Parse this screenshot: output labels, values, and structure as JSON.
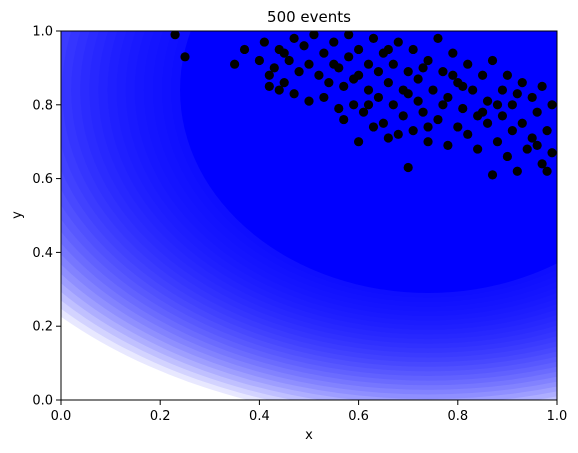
{
  "chart_data": {
    "type": "scatter",
    "title": "500 events",
    "xlabel": "x",
    "ylabel": "y",
    "xlim": [
      0,
      1
    ],
    "ylim": [
      0,
      1
    ],
    "grid": false,
    "x_ticks": [
      "0.0",
      "0.2",
      "0.4",
      "0.6",
      "0.8",
      "1.0"
    ],
    "y_ticks": [
      "0.0",
      "0.2",
      "0.4",
      "0.6",
      "0.8",
      "1.0"
    ],
    "background": {
      "type": "density",
      "color": "#0000ff",
      "peak_center": [
        0.74,
        0.84
      ],
      "saturated_radius": 0.5,
      "fade_radius": 0.75
    },
    "series": [
      {
        "marker_color": "#000000",
        "points": [
          [
            0.23,
            0.99
          ],
          [
            0.25,
            0.93
          ],
          [
            0.35,
            0.91
          ],
          [
            0.37,
            0.95
          ],
          [
            0.4,
            0.92
          ],
          [
            0.41,
            0.97
          ],
          [
            0.42,
            0.85
          ],
          [
            0.42,
            0.88
          ],
          [
            0.43,
            0.9
          ],
          [
            0.44,
            0.95
          ],
          [
            0.45,
            0.86
          ],
          [
            0.46,
            0.92
          ],
          [
            0.47,
            0.98
          ],
          [
            0.47,
            0.83
          ],
          [
            0.48,
            0.89
          ],
          [
            0.49,
            0.96
          ],
          [
            0.5,
            0.81
          ],
          [
            0.5,
            0.91
          ],
          [
            0.51,
            0.99
          ],
          [
            0.52,
            0.88
          ],
          [
            0.53,
            0.94
          ],
          [
            0.54,
            0.86
          ],
          [
            0.55,
            0.97
          ],
          [
            0.56,
            0.79
          ],
          [
            0.56,
            0.9
          ],
          [
            0.57,
            0.85
          ],
          [
            0.58,
            0.93
          ],
          [
            0.58,
            0.99
          ],
          [
            0.59,
            0.8
          ],
          [
            0.6,
            0.88
          ],
          [
            0.6,
            0.95
          ],
          [
            0.61,
            0.78
          ],
          [
            0.62,
            0.84
          ],
          [
            0.62,
            0.91
          ],
          [
            0.63,
            0.98
          ],
          [
            0.64,
            0.82
          ],
          [
            0.64,
            0.89
          ],
          [
            0.65,
            0.75
          ],
          [
            0.65,
            0.94
          ],
          [
            0.66,
            0.86
          ],
          [
            0.67,
            0.8
          ],
          [
            0.67,
            0.91
          ],
          [
            0.68,
            0.97
          ],
          [
            0.69,
            0.77
          ],
          [
            0.69,
            0.84
          ],
          [
            0.7,
            0.63
          ],
          [
            0.7,
            0.89
          ],
          [
            0.71,
            0.73
          ],
          [
            0.71,
            0.95
          ],
          [
            0.72,
            0.81
          ],
          [
            0.72,
            0.87
          ],
          [
            0.73,
            0.78
          ],
          [
            0.74,
            0.92
          ],
          [
            0.74,
            0.7
          ],
          [
            0.75,
            0.84
          ],
          [
            0.76,
            0.98
          ],
          [
            0.76,
            0.76
          ],
          [
            0.77,
            0.89
          ],
          [
            0.78,
            0.69
          ],
          [
            0.78,
            0.82
          ],
          [
            0.79,
            0.94
          ],
          [
            0.8,
            0.74
          ],
          [
            0.8,
            0.86
          ],
          [
            0.81,
            0.79
          ],
          [
            0.82,
            0.91
          ],
          [
            0.82,
            0.72
          ],
          [
            0.83,
            0.84
          ],
          [
            0.84,
            0.77
          ],
          [
            0.84,
            0.68
          ],
          [
            0.85,
            0.88
          ],
          [
            0.86,
            0.75
          ],
          [
            0.86,
            0.81
          ],
          [
            0.87,
            0.61
          ],
          [
            0.87,
            0.92
          ],
          [
            0.88,
            0.7
          ],
          [
            0.89,
            0.84
          ],
          [
            0.89,
            0.77
          ],
          [
            0.9,
            0.66
          ],
          [
            0.9,
            0.88
          ],
          [
            0.91,
            0.73
          ],
          [
            0.91,
            0.8
          ],
          [
            0.92,
            0.62
          ],
          [
            0.93,
            0.86
          ],
          [
            0.93,
            0.75
          ],
          [
            0.94,
            0.68
          ],
          [
            0.95,
            0.82
          ],
          [
            0.95,
            0.71
          ],
          [
            0.96,
            0.78
          ],
          [
            0.97,
            0.64
          ],
          [
            0.97,
            0.85
          ],
          [
            0.98,
            0.73
          ],
          [
            0.99,
            0.67
          ],
          [
            0.99,
            0.8
          ],
          [
            0.6,
            0.7
          ],
          [
            0.66,
            0.71
          ],
          [
            0.57,
            0.76
          ],
          [
            0.53,
            0.82
          ],
          [
            0.63,
            0.74
          ],
          [
            0.68,
            0.72
          ],
          [
            0.74,
            0.74
          ],
          [
            0.62,
            0.8
          ],
          [
            0.7,
            0.83
          ],
          [
            0.77,
            0.8
          ],
          [
            0.81,
            0.85
          ],
          [
            0.85,
            0.78
          ],
          [
            0.88,
            0.8
          ],
          [
            0.92,
            0.83
          ],
          [
            0.96,
            0.69
          ],
          [
            0.98,
            0.62
          ],
          [
            0.79,
            0.88
          ],
          [
            0.73,
            0.9
          ],
          [
            0.66,
            0.95
          ],
          [
            0.59,
            0.87
          ],
          [
            0.55,
            0.91
          ],
          [
            0.45,
            0.94
          ],
          [
            0.44,
            0.84
          ]
        ]
      }
    ]
  }
}
